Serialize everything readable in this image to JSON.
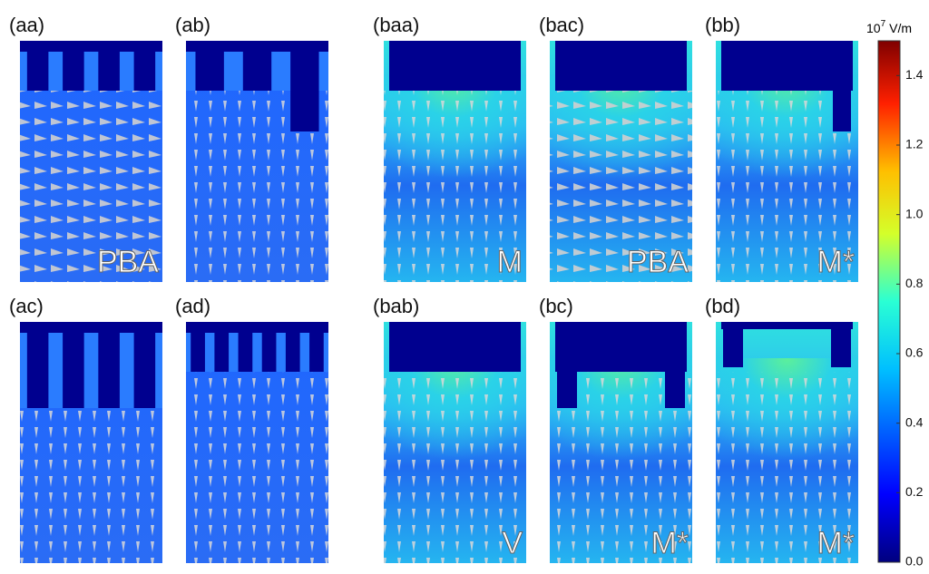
{
  "panels": [
    {
      "label": "(aa)",
      "tag": "PBA"
    },
    {
      "label": "(ab)"
    },
    {
      "label": "(baa)",
      "tag": "M"
    },
    {
      "label": "(bac)",
      "tag": "PBA"
    },
    {
      "label": "(bb)",
      "tag": "M*"
    },
    {
      "label": "(ac)"
    },
    {
      "label": "(ad)"
    },
    {
      "label": "(bab)",
      "tag": "V"
    },
    {
      "label": "(bc)",
      "tag": "M*"
    },
    {
      "label": "(bd)",
      "tag": "M*"
    }
  ],
  "colorbar": {
    "unit": {
      "base": "10",
      "exponent": "7",
      "text": "V/m"
    },
    "lim": [
      0,
      1.5
    ],
    "ticks": [
      {
        "value": 0,
        "label": "0.0"
      },
      {
        "value": 0.2,
        "label": "0.2"
      },
      {
        "value": 0.4,
        "label": "0.4"
      },
      {
        "value": 0.6,
        "label": "0.6"
      },
      {
        "value": 0.8,
        "label": "0.8"
      },
      {
        "value": 1,
        "label": "1.0"
      },
      {
        "value": 1.2,
        "label": "1.2"
      },
      {
        "value": 1.4,
        "label": "1.4"
      }
    ]
  }
}
